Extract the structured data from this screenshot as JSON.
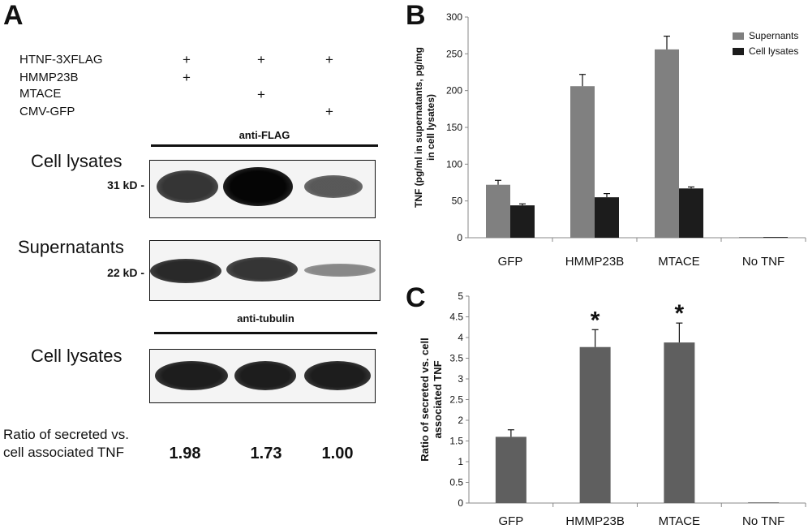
{
  "panel_a": {
    "letter": "A",
    "conditions": [
      {
        "label": "HTNF-3XFLAG",
        "marks": [
          "+",
          "+",
          "+"
        ]
      },
      {
        "label": "HMMP23B",
        "marks": [
          "+",
          "",
          ""
        ]
      },
      {
        "label": "MTACE",
        "marks": [
          "",
          "+",
          ""
        ]
      },
      {
        "label": "CMV-GFP",
        "marks": [
          "",
          "",
          "+"
        ]
      }
    ],
    "blots": [
      {
        "antibody": "anti-FLAG",
        "section": "Cell lysates",
        "marker": "31 kD -"
      },
      {
        "antibody": "",
        "section": "Supernatants",
        "marker": "22 kD -"
      },
      {
        "antibody": "anti-tubulin",
        "section": "Cell lysates",
        "marker": ""
      }
    ],
    "band_intensity": [
      [
        0.8,
        1.0,
        0.65
      ],
      [
        0.85,
        0.8,
        0.45
      ],
      [
        0.9,
        0.9,
        0.9
      ]
    ],
    "ratio_label_line1": "Ratio of secreted vs.",
    "ratio_label_line2": "cell associated TNF",
    "ratio_values": [
      "1.98",
      "1.73",
      "1.00"
    ]
  },
  "chart_data": [
    {
      "panel": "B",
      "type": "bar",
      "categories": [
        "GFP",
        "HMMP23B",
        "MTACE",
        "No TNF"
      ],
      "ylabel_lines": [
        "TNF (pg/ml in supernatants, pg/mg",
        "in cell lysates)"
      ],
      "ylim": [
        0,
        300
      ],
      "yticks": [
        "0",
        "50",
        "100",
        "150",
        "200",
        "250",
        "300"
      ],
      "legend_position": "top-right",
      "series": [
        {
          "name": "Supernants",
          "color": "#808080",
          "values": [
            72,
            206,
            256,
            1
          ],
          "errors": [
            6,
            16,
            18,
            0
          ]
        },
        {
          "name": "Cell lysates",
          "color": "#1c1c1c",
          "values": [
            44,
            55,
            67,
            1
          ],
          "errors": [
            2,
            5,
            2,
            0
          ]
        }
      ]
    },
    {
      "panel": "C",
      "type": "bar",
      "categories": [
        "GFP",
        "HMMP23B",
        "MTACE",
        "No TNF"
      ],
      "ylabel_lines": [
        "Ratio of secreted vs. cell",
        "associated TNF"
      ],
      "ylim": [
        0,
        5
      ],
      "yticks": [
        "0",
        "0.5",
        "1",
        "1.5",
        "2",
        "2.5",
        "3",
        "3.5",
        "4",
        "4.5",
        "5"
      ],
      "series": [
        {
          "name": "",
          "color": "#5f5f5f",
          "values": [
            1.6,
            3.77,
            3.88,
            0
          ],
          "errors": [
            0.17,
            0.42,
            0.47,
            0
          ]
        }
      ],
      "annotations": [
        "",
        "*",
        "*",
        ""
      ]
    }
  ]
}
